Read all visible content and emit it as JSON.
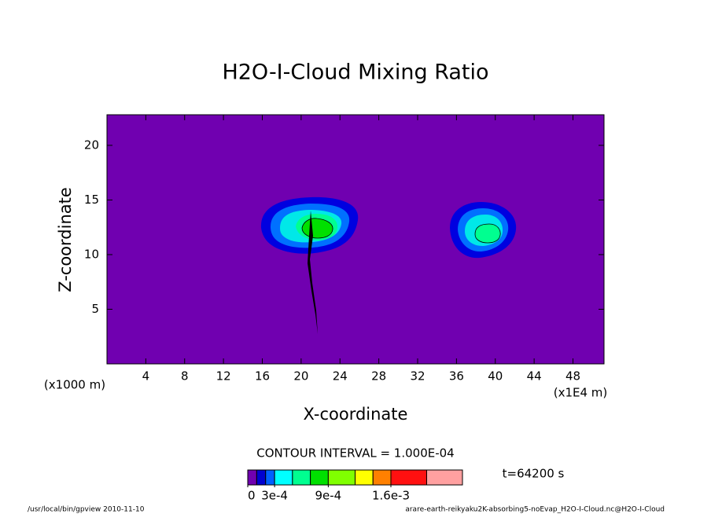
{
  "chart_data": {
    "type": "contour",
    "title": "H2O-I-Cloud Mixing Ratio",
    "x_label": "X-coordinate",
    "y_label": "Z-coordinate",
    "x_unit_left": "(x1000 m)",
    "x_unit_right": "(x1E4 m)",
    "xlim": [
      0,
      51.2
    ],
    "ylim": [
      0,
      22.8
    ],
    "xticks": [
      4,
      8,
      12,
      16,
      20,
      24,
      28,
      32,
      36,
      40,
      44,
      48
    ],
    "yticks": [
      5,
      10,
      15,
      20
    ],
    "background_color": "#7000b0",
    "contour_interval": "CONTOUR INTERVAL = 1.000E-04",
    "time_label": "t=64200 s",
    "colorbar": {
      "levels": [
        0,
        0.0001,
        0.0002,
        0.0003,
        0.0005,
        0.0007,
        0.0009,
        0.0012,
        0.0014,
        0.0016,
        0.002,
        0.0024
      ],
      "colors": [
        "#7000b0",
        "#0000d0",
        "#0060ff",
        "#00ffff",
        "#00ff90",
        "#00e000",
        "#80ff00",
        "#ffff00",
        "#ff8000",
        "#ff1010",
        "#ffa0a0"
      ],
      "ticks": [
        0,
        {
          "value": 0.0003,
          "label": "3e-4"
        },
        {
          "value": 0.0009,
          "label": "9e-4"
        },
        {
          "value": 0.0016,
          "label": "1.6e-3"
        }
      ]
    },
    "footer_left": "/usr/local/bin/gpview  2010-11-10",
    "footer_right": "arare-earth-reikyaku2K-absorbing5-noEvap_H2O-I-Cloud.nc@H2O-I-Cloud"
  }
}
